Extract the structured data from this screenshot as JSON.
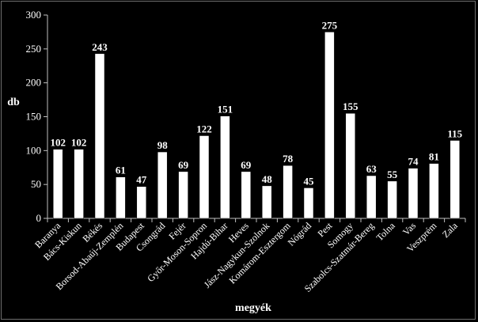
{
  "chart_data": {
    "type": "bar",
    "categories": [
      "Baranya",
      "Bács-Kiskun",
      "Békés",
      "Borsod-Abaúj-Zemplén",
      "Budapest",
      "Csongrád",
      "Fejér",
      "Győr-Moson-Sopron",
      "Hajdú-Bihar",
      "Heves",
      "Jász-Nagykun-Szolnok",
      "Komárom-Esztergom",
      "Nógrád",
      "Pest",
      "Somogy",
      "Szabolcs-Szatmár-Bereg",
      "Tolna",
      "Vas",
      "Veszprém",
      "Zala"
    ],
    "values": [
      102,
      102,
      243,
      61,
      47,
      98,
      69,
      122,
      151,
      69,
      48,
      78,
      45,
      275,
      155,
      63,
      55,
      74,
      81,
      115
    ],
    "xlabel": "megyék",
    "ylabel": "db",
    "ylim": [
      0,
      300
    ],
    "yticks": [
      0,
      50,
      100,
      150,
      200,
      250,
      300
    ],
    "grid": false,
    "colors": {
      "background": "#000000",
      "bar_fill": "#ffffff",
      "bar_stroke": "#000000",
      "text": "#ffffff",
      "axis": "#c0c0c0"
    }
  }
}
